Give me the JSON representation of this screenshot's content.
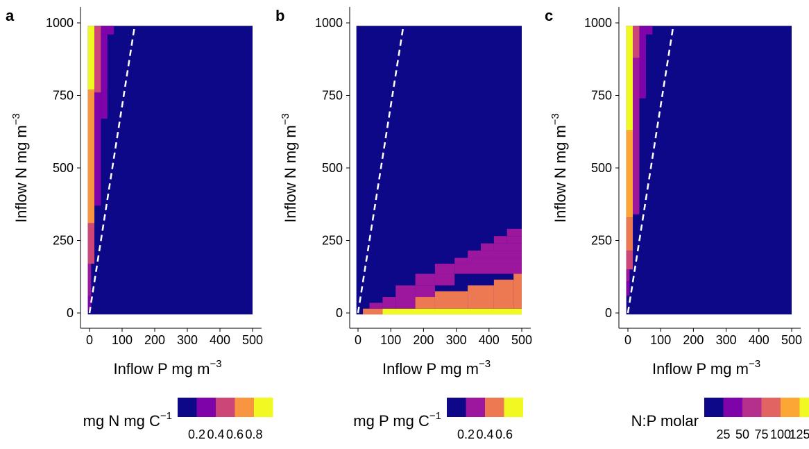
{
  "chart_data": [
    {
      "panel_label": "a",
      "type": "heatmap",
      "xlabel": "Inflow P mg m",
      "xlabel_sup": "−3",
      "ylabel": "Inflow N mg m",
      "ylabel_sup": "−3",
      "xlim": [
        0,
        500
      ],
      "ylim": [
        0,
        1000
      ],
      "x_ticks": [
        "0",
        "100",
        "200",
        "300",
        "400",
        "500"
      ],
      "x_tick_values": [
        0,
        100,
        200,
        300,
        400,
        500
      ],
      "y_ticks": [
        "0",
        "250",
        "500",
        "750",
        "1000"
      ],
      "y_tick_values": [
        0,
        250,
        500,
        750,
        1000
      ],
      "background_color": "#0d0887",
      "reference_line": {
        "style": "dashed",
        "color": "#ffffff",
        "x": [
          0,
          140
        ],
        "y": [
          0,
          1000
        ]
      },
      "cells": [
        {
          "x0": -5,
          "x1": 5,
          "y0": 10,
          "y1": 60,
          "color": "#7e03a8"
        },
        {
          "x0": -5,
          "x1": 5,
          "y0": 60,
          "y1": 170,
          "color": "#9c179e"
        },
        {
          "x0": -5,
          "x1": 15,
          "y0": 170,
          "y1": 310,
          "color": "#cc4778"
        },
        {
          "x0": -5,
          "x1": 15,
          "y0": 310,
          "y1": 770,
          "color": "#f89540"
        },
        {
          "x0": -5,
          "x1": 15,
          "y0": 770,
          "y1": 990,
          "color": "#f0f921"
        },
        {
          "x0": 15,
          "x1": 35,
          "y0": 370,
          "y1": 760,
          "color": "#7e03a8"
        },
        {
          "x0": 15,
          "x1": 35,
          "y0": 760,
          "y1": 990,
          "color": "#cc4778"
        },
        {
          "x0": 35,
          "x1": 55,
          "y0": 670,
          "y1": 760,
          "color": "#7e03a8"
        },
        {
          "x0": 35,
          "x1": 75,
          "y0": 960,
          "y1": 990,
          "color": "#7e03a8"
        },
        {
          "x0": 35,
          "x1": 55,
          "y0": 760,
          "y1": 960,
          "color": "#7e03a8"
        }
      ],
      "legend": {
        "title": "mg N mg C",
        "title_sup": "−1",
        "position": "bottom",
        "colors": [
          "#0d0887",
          "#7e03a8",
          "#cc4778",
          "#f89540",
          "#f0f921"
        ],
        "labels": [
          "0.2",
          "0.4",
          "0.6",
          "0.8"
        ]
      }
    },
    {
      "panel_label": "b",
      "type": "heatmap",
      "xlabel": "Inflow P mg m",
      "xlabel_sup": "−3",
      "ylabel": "Inflow N mg m",
      "ylabel_sup": "−3",
      "xlim": [
        0,
        500
      ],
      "ylim": [
        0,
        1000
      ],
      "x_ticks": [
        "0",
        "100",
        "200",
        "300",
        "400",
        "500"
      ],
      "x_tick_values": [
        0,
        100,
        200,
        300,
        400,
        500
      ],
      "y_ticks": [
        "0",
        "250",
        "500",
        "750",
        "1000"
      ],
      "y_tick_values": [
        0,
        250,
        500,
        750,
        1000
      ],
      "background_color": "#0d0887",
      "reference_line": {
        "style": "dashed",
        "color": "#ffffff",
        "x": [
          0,
          140
        ],
        "y": [
          0,
          1000
        ]
      },
      "cells": [
        {
          "x0": 15,
          "x1": 75,
          "y0": -5,
          "y1": 15,
          "color": "#ed7953"
        },
        {
          "x0": 75,
          "x1": 500,
          "y0": -5,
          "y1": 15,
          "color": "#f0f921"
        },
        {
          "x0": 35,
          "x1": 75,
          "y0": 15,
          "y1": 35,
          "color": "#9c179e"
        },
        {
          "x0": 75,
          "x1": 115,
          "y0": 15,
          "y1": 55,
          "color": "#9c179e"
        },
        {
          "x0": 115,
          "x1": 175,
          "y0": 55,
          "y1": 95,
          "color": "#9c179e"
        },
        {
          "x0": 175,
          "x1": 235,
          "y0": 95,
          "y1": 135,
          "color": "#9c179e"
        },
        {
          "x0": 235,
          "x1": 295,
          "y0": 135,
          "y1": 170,
          "color": "#9c179e"
        },
        {
          "x0": 295,
          "x1": 335,
          "y0": 170,
          "y1": 190,
          "color": "#9c179e"
        },
        {
          "x0": 335,
          "x1": 375,
          "y0": 190,
          "y1": 215,
          "color": "#9c179e"
        },
        {
          "x0": 375,
          "x1": 415,
          "y0": 215,
          "y1": 240,
          "color": "#9c179e"
        },
        {
          "x0": 415,
          "x1": 455,
          "y0": 240,
          "y1": 265,
          "color": "#9c179e"
        },
        {
          "x0": 455,
          "x1": 500,
          "y0": 265,
          "y1": 290,
          "color": "#9c179e"
        },
        {
          "x0": 115,
          "x1": 175,
          "y0": 15,
          "y1": 55,
          "color": "#9c179e"
        },
        {
          "x0": 175,
          "x1": 235,
          "y0": 55,
          "y1": 95,
          "color": "#9c179e"
        },
        {
          "x0": 235,
          "x1": 295,
          "y0": 95,
          "y1": 135,
          "color": "#9c179e"
        },
        {
          "x0": 295,
          "x1": 500,
          "y0": 135,
          "y1": 170,
          "color": "#9c179e"
        },
        {
          "x0": 335,
          "x1": 500,
          "y0": 170,
          "y1": 190,
          "color": "#9c179e"
        },
        {
          "x0": 375,
          "x1": 500,
          "y0": 190,
          "y1": 215,
          "color": "#9c179e"
        },
        {
          "x0": 415,
          "x1": 500,
          "y0": 215,
          "y1": 240,
          "color": "#9c179e"
        },
        {
          "x0": 455,
          "x1": 500,
          "y0": 240,
          "y1": 265,
          "color": "#9c179e"
        },
        {
          "x0": 175,
          "x1": 235,
          "y0": 15,
          "y1": 55,
          "color": "#ed7953"
        },
        {
          "x0": 235,
          "x1": 335,
          "y0": 15,
          "y1": 75,
          "color": "#ed7953"
        },
        {
          "x0": 335,
          "x1": 415,
          "y0": 15,
          "y1": 95,
          "color": "#ed7953"
        },
        {
          "x0": 415,
          "x1": 475,
          "y0": 15,
          "y1": 115,
          "color": "#ed7953"
        },
        {
          "x0": 475,
          "x1": 500,
          "y0": 15,
          "y1": 135,
          "color": "#ed7953"
        }
      ],
      "legend": {
        "title": "mg P mg C",
        "title_sup": "−1",
        "position": "bottom",
        "colors": [
          "#0d0887",
          "#9c179e",
          "#ed7953",
          "#f0f921"
        ],
        "labels": [
          "0.2",
          "0.4",
          "0.6"
        ]
      }
    },
    {
      "panel_label": "c",
      "type": "heatmap",
      "xlabel": "Inflow P mg m",
      "xlabel_sup": "−3",
      "ylabel": "Inflow N mg m",
      "ylabel_sup": "−3",
      "xlim": [
        0,
        500
      ],
      "ylim": [
        0,
        1000
      ],
      "x_ticks": [
        "0",
        "100",
        "200",
        "300",
        "400",
        "500"
      ],
      "x_tick_values": [
        0,
        100,
        200,
        300,
        400,
        500
      ],
      "y_ticks": [
        "0",
        "250",
        "500",
        "750",
        "1000"
      ],
      "y_tick_values": [
        0,
        250,
        500,
        750,
        1000
      ],
      "background_color": "#0d0887",
      "reference_line": {
        "style": "dashed",
        "color": "#ffffff",
        "x": [
          0,
          140
        ],
        "y": [
          0,
          1000
        ]
      },
      "cells": [
        {
          "x0": -5,
          "x1": 5,
          "y0": 60,
          "y1": 110,
          "color": "#7e03a8"
        },
        {
          "x0": -5,
          "x1": 5,
          "y0": 110,
          "y1": 150,
          "color": "#9c179e"
        },
        {
          "x0": -5,
          "x1": 15,
          "y0": 150,
          "y1": 215,
          "color": "#cc4778"
        },
        {
          "x0": -5,
          "x1": 15,
          "y0": 215,
          "y1": 330,
          "color": "#ed7953"
        },
        {
          "x0": -5,
          "x1": 15,
          "y0": 330,
          "y1": 630,
          "color": "#fca636"
        },
        {
          "x0": -5,
          "x1": 15,
          "y0": 630,
          "y1": 990,
          "color": "#f0f921"
        },
        {
          "x0": 15,
          "x1": 35,
          "y0": 340,
          "y1": 880,
          "color": "#9c179e"
        },
        {
          "x0": 15,
          "x1": 35,
          "y0": 880,
          "y1": 990,
          "color": "#cc4778"
        },
        {
          "x0": 35,
          "x1": 55,
          "y0": 740,
          "y1": 990,
          "color": "#7e03a8"
        },
        {
          "x0": 55,
          "x1": 75,
          "y0": 960,
          "y1": 990,
          "color": "#7e03a8"
        }
      ],
      "legend": {
        "title": "N:P molar",
        "title_sup": "",
        "position": "bottom",
        "colors": [
          "#0d0887",
          "#7e03a8",
          "#b52f8c",
          "#e16462",
          "#fca636",
          "#f0f921"
        ],
        "labels": [
          "25",
          "50",
          "75",
          "100",
          "125"
        ]
      }
    }
  ]
}
